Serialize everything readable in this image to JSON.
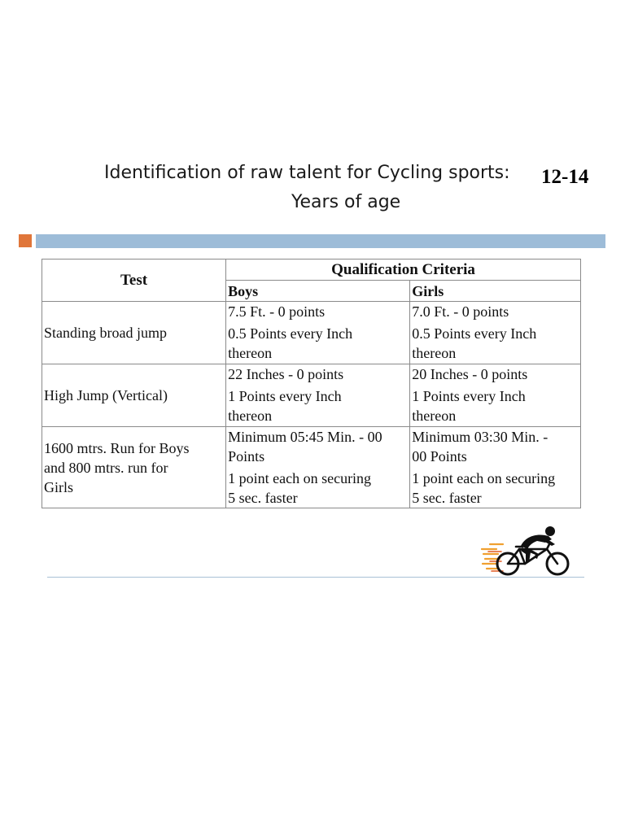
{
  "slide": {
    "title_text": "Identification of raw talent for Cycling sports:",
    "title_age_range": "12-14",
    "title_line2": "Years of age"
  },
  "colors": {
    "accent_square": "#e0763a",
    "accent_bar": "#9dbcd8",
    "table_border": "#8a8a8a"
  },
  "table": {
    "header": {
      "test": "Test",
      "qualification": "Qualification Criteria",
      "boys": "Boys",
      "girls": "Girls"
    },
    "rows": [
      {
        "test": "Standing broad jump",
        "boys": [
          "7.5 Ft. - 0 points",
          "0.5 Points every Inch",
          "thereon"
        ],
        "girls": [
          "7.0 Ft. - 0 points",
          "0.5 Points every Inch",
          "thereon"
        ]
      },
      {
        "test": "High Jump (Vertical)",
        "boys": [
          "22 Inches - 0 points",
          "1 Points every Inch",
          "thereon"
        ],
        "girls": [
          "20 Inches - 0 points",
          "1 Points every Inch",
          "thereon"
        ]
      },
      {
        "test": [
          "1600 mtrs. Run for Boys",
          "and 800 mtrs. run for",
          "Girls"
        ],
        "boys": [
          "Minimum 05:45 Min. - 00",
          "Points",
          "1 point each on securing",
          "5 sec. faster"
        ],
        "girls": [
          "Minimum 03:30 Min. -",
          "00 Points",
          "1 point each on securing",
          "5 sec. faster"
        ]
      }
    ]
  },
  "icons": {
    "cyclist": "cyclist-icon"
  }
}
